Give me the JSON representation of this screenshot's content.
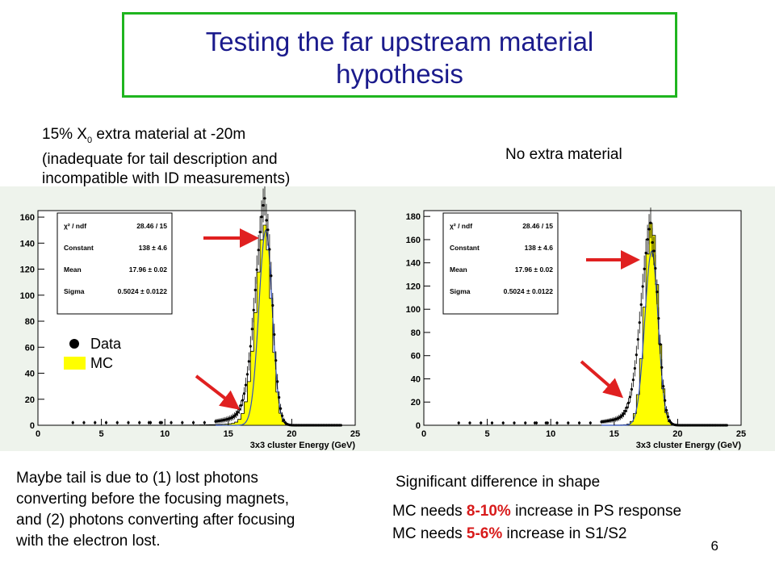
{
  "slide": {
    "title_line1": "Testing the far upstream material",
    "title_line2": "hypothesis",
    "left_caption": [
      "15% X",
      "0",
      " extra material at -20m",
      "(inadequate for tail description and",
      "incompatible with ID measurements)"
    ],
    "right_caption": "No extra material",
    "left_note": [
      "Maybe tail is due to (1) lost photons",
      "converting before the focusing magnets,",
      "and (2) photons converting after focusing",
      "with the electron lost."
    ],
    "right_note1": "Significant difference in shape",
    "right_note2_pre": "MC needs ",
    "right_note2_red": "8-10%",
    "right_note2_post": " increase in PS response",
    "right_note3_pre": "MC needs ",
    "right_note3_red": "5-6%",
    "right_note3_post": " increase in S1/S2",
    "page_number": "6",
    "legend": {
      "data": "Data",
      "mc": "MC"
    },
    "colors": {
      "mc_fill": "#ffff00",
      "title": "#1a1a8c",
      "box": "#1fb51f",
      "arrow": "#e02020"
    }
  },
  "chart_data": [
    {
      "type": "histogram",
      "xlabel": "3x3 cluster Energy (GeV)",
      "xlim": [
        0,
        25
      ],
      "ylim": [
        0,
        165
      ],
      "xticks": [
        0,
        5,
        10,
        15,
        20,
        25
      ],
      "yticks": [
        0,
        20,
        40,
        60,
        80,
        100,
        120,
        140,
        160
      ],
      "stats": [
        {
          "label": "χ² / ndf",
          "value": "28.46 / 15"
        },
        {
          "label": "Constant",
          "value": "138 ± 4.6"
        },
        {
          "label": "Mean",
          "value": "17.96 ± 0.02"
        },
        {
          "label": "Sigma",
          "value": "0.5024 ± 0.0122"
        }
      ],
      "mc": {
        "peak": 148,
        "mean": 17.9,
        "sigma_left": 0.72,
        "sigma_right": 0.52,
        "tail_amp": 6,
        "tail_width": 1.6
      },
      "data": {
        "peak": 158,
        "mean": 17.96,
        "sigma_left": 0.8,
        "sigma_right": 0.52,
        "tail_amp": 18,
        "tail_width": 2.2
      }
    },
    {
      "type": "histogram",
      "xlabel": "3x3 cluster Energy (GeV)",
      "xlim": [
        0,
        25
      ],
      "ylim": [
        0,
        185
      ],
      "xticks": [
        0,
        5,
        10,
        15,
        20,
        25
      ],
      "yticks": [
        0,
        20,
        40,
        60,
        80,
        100,
        120,
        140,
        160,
        180
      ],
      "stats": [
        {
          "label": "χ² / ndf",
          "value": "28.46 / 15"
        },
        {
          "label": "Constant",
          "value": "138 ± 4.6"
        },
        {
          "label": "Mean",
          "value": "17.96 ± 0.02"
        },
        {
          "label": "Sigma",
          "value": "0.5024 ± 0.0122"
        }
      ],
      "mc": {
        "peak": 174,
        "mean": 17.95,
        "sigma_left": 0.55,
        "sigma_right": 0.5,
        "tail_amp": 2,
        "tail_width": 1.0
      },
      "data": {
        "peak": 158,
        "mean": 17.96,
        "sigma_left": 0.8,
        "sigma_right": 0.52,
        "tail_amp": 18,
        "tail_width": 2.2
      }
    }
  ]
}
